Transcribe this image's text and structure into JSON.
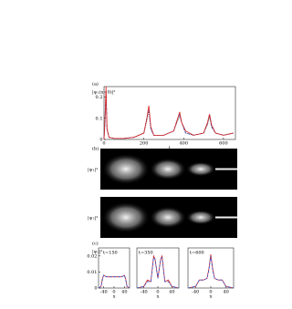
{
  "chart_data": [
    {
      "type": "line",
      "panel_label": "(a)",
      "ylabel": "|ψ₁(x=0)|²",
      "xlabel": "t",
      "x": [
        0,
        5,
        10,
        15,
        25,
        50,
        100,
        150,
        200,
        215,
        225,
        235,
        250,
        300,
        350,
        370,
        380,
        390,
        410,
        450,
        500,
        520,
        530,
        540,
        560,
        600,
        650
      ],
      "series": [
        {
          "color": "#222222",
          "dash": "1,1",
          "values": [
            0,
            0.08,
            0.22,
            0.05,
            0.01,
            0.005,
            0.005,
            0.01,
            0.03,
            0.09,
            0.14,
            0.05,
            0.02,
            0.02,
            0.04,
            0.09,
            0.11,
            0.08,
            0.03,
            0.02,
            0.03,
            0.07,
            0.11,
            0.06,
            0.03,
            0.02,
            0.03
          ]
        },
        {
          "color": "#3355cc",
          "dash": "3,1.5",
          "values": [
            0,
            0.09,
            0.23,
            0.05,
            0.01,
            0.005,
            0.005,
            0.01,
            0.03,
            0.1,
            0.15,
            0.05,
            0.02,
            0.02,
            0.04,
            0.1,
            0.12,
            0.08,
            0.03,
            0.02,
            0.03,
            0.08,
            0.12,
            0.06,
            0.03,
            0.02,
            0.03
          ]
        },
        {
          "color": "#dd2222",
          "dash": "",
          "values": [
            0,
            0.1,
            0.25,
            0.05,
            0.01,
            0.005,
            0.005,
            0.01,
            0.03,
            0.1,
            0.16,
            0.06,
            0.02,
            0.02,
            0.04,
            0.1,
            0.13,
            0.08,
            0.04,
            0.02,
            0.03,
            0.08,
            0.12,
            0.07,
            0.03,
            0.02,
            0.03
          ]
        }
      ],
      "xlim": [
        0,
        660
      ],
      "ylim": [
        0,
        0.25
      ],
      "xticks": [
        0,
        200,
        400,
        600
      ],
      "yticks": [
        0,
        0.1,
        0.2
      ]
    },
    {
      "type": "line",
      "panel_label": "(c)",
      "annotation": "t=150",
      "ylabel": "|ψ₁|²",
      "xlabel": "x",
      "x": [
        -60,
        -50,
        -45,
        -40,
        -30,
        -15,
        0,
        15,
        30,
        40,
        45,
        50,
        60
      ],
      "series": [
        {
          "color": "#dd2222",
          "dash": "",
          "values": [
            0,
            0.001,
            0.006,
            0.008,
            0.007,
            0.007,
            0.007,
            0.007,
            0.007,
            0.008,
            0.006,
            0.001,
            0
          ]
        },
        {
          "color": "#3355cc",
          "dash": "3,1.5",
          "values": [
            0,
            0.001,
            0.005,
            0.008,
            0.007,
            0.007,
            0.007,
            0.007,
            0.007,
            0.008,
            0.005,
            0.001,
            0
          ]
        }
      ],
      "xlim": [
        -60,
        60
      ],
      "ylim": [
        0,
        0.025
      ],
      "xticks": [
        -40,
        0,
        40
      ],
      "yticks": [
        0,
        0.01,
        0.02
      ]
    },
    {
      "type": "line",
      "annotation": "t=350",
      "xlabel": "x",
      "x": [
        -60,
        -40,
        -30,
        -20,
        -12,
        -8,
        0,
        8,
        12,
        20,
        30,
        40,
        60
      ],
      "series": [
        {
          "color": "#dd2222",
          "dash": "",
          "values": [
            0,
            0.001,
            0.005,
            0.004,
            0.02,
            0.018,
            0.006,
            0.018,
            0.02,
            0.004,
            0.005,
            0.001,
            0
          ]
        },
        {
          "color": "#3355cc",
          "dash": "3,1.5",
          "values": [
            0,
            0.001,
            0.004,
            0.004,
            0.019,
            0.018,
            0.006,
            0.018,
            0.019,
            0.004,
            0.004,
            0.001,
            0
          ]
        }
      ],
      "xlim": [
        -60,
        60
      ],
      "ylim": [
        0,
        0.025
      ],
      "xticks": [
        -40,
        0,
        40
      ]
    },
    {
      "type": "line",
      "annotation": "t=600",
      "xlabel": "x",
      "x": [
        -60,
        -40,
        -30,
        -20,
        -10,
        -5,
        0,
        5,
        10,
        20,
        30,
        40,
        60
      ],
      "series": [
        {
          "color": "#dd2222",
          "dash": "",
          "values": [
            0,
            0.001,
            0.005,
            0.005,
            0.006,
            0.012,
            0.021,
            0.012,
            0.006,
            0.005,
            0.005,
            0.001,
            0
          ]
        },
        {
          "color": "#3355cc",
          "dash": "3,1.5",
          "values": [
            0,
            0.001,
            0.005,
            0.005,
            0.006,
            0.011,
            0.02,
            0.011,
            0.006,
            0.005,
            0.005,
            0.001,
            0
          ]
        }
      ],
      "xlim": [
        -60,
        60
      ],
      "ylim": [
        0,
        0.025
      ],
      "xticks": [
        -40,
        0,
        40
      ]
    }
  ],
  "panel_b": {
    "label": "(b)",
    "rows": [
      "|ψ₁|²",
      "|ψ₂|²"
    ]
  }
}
